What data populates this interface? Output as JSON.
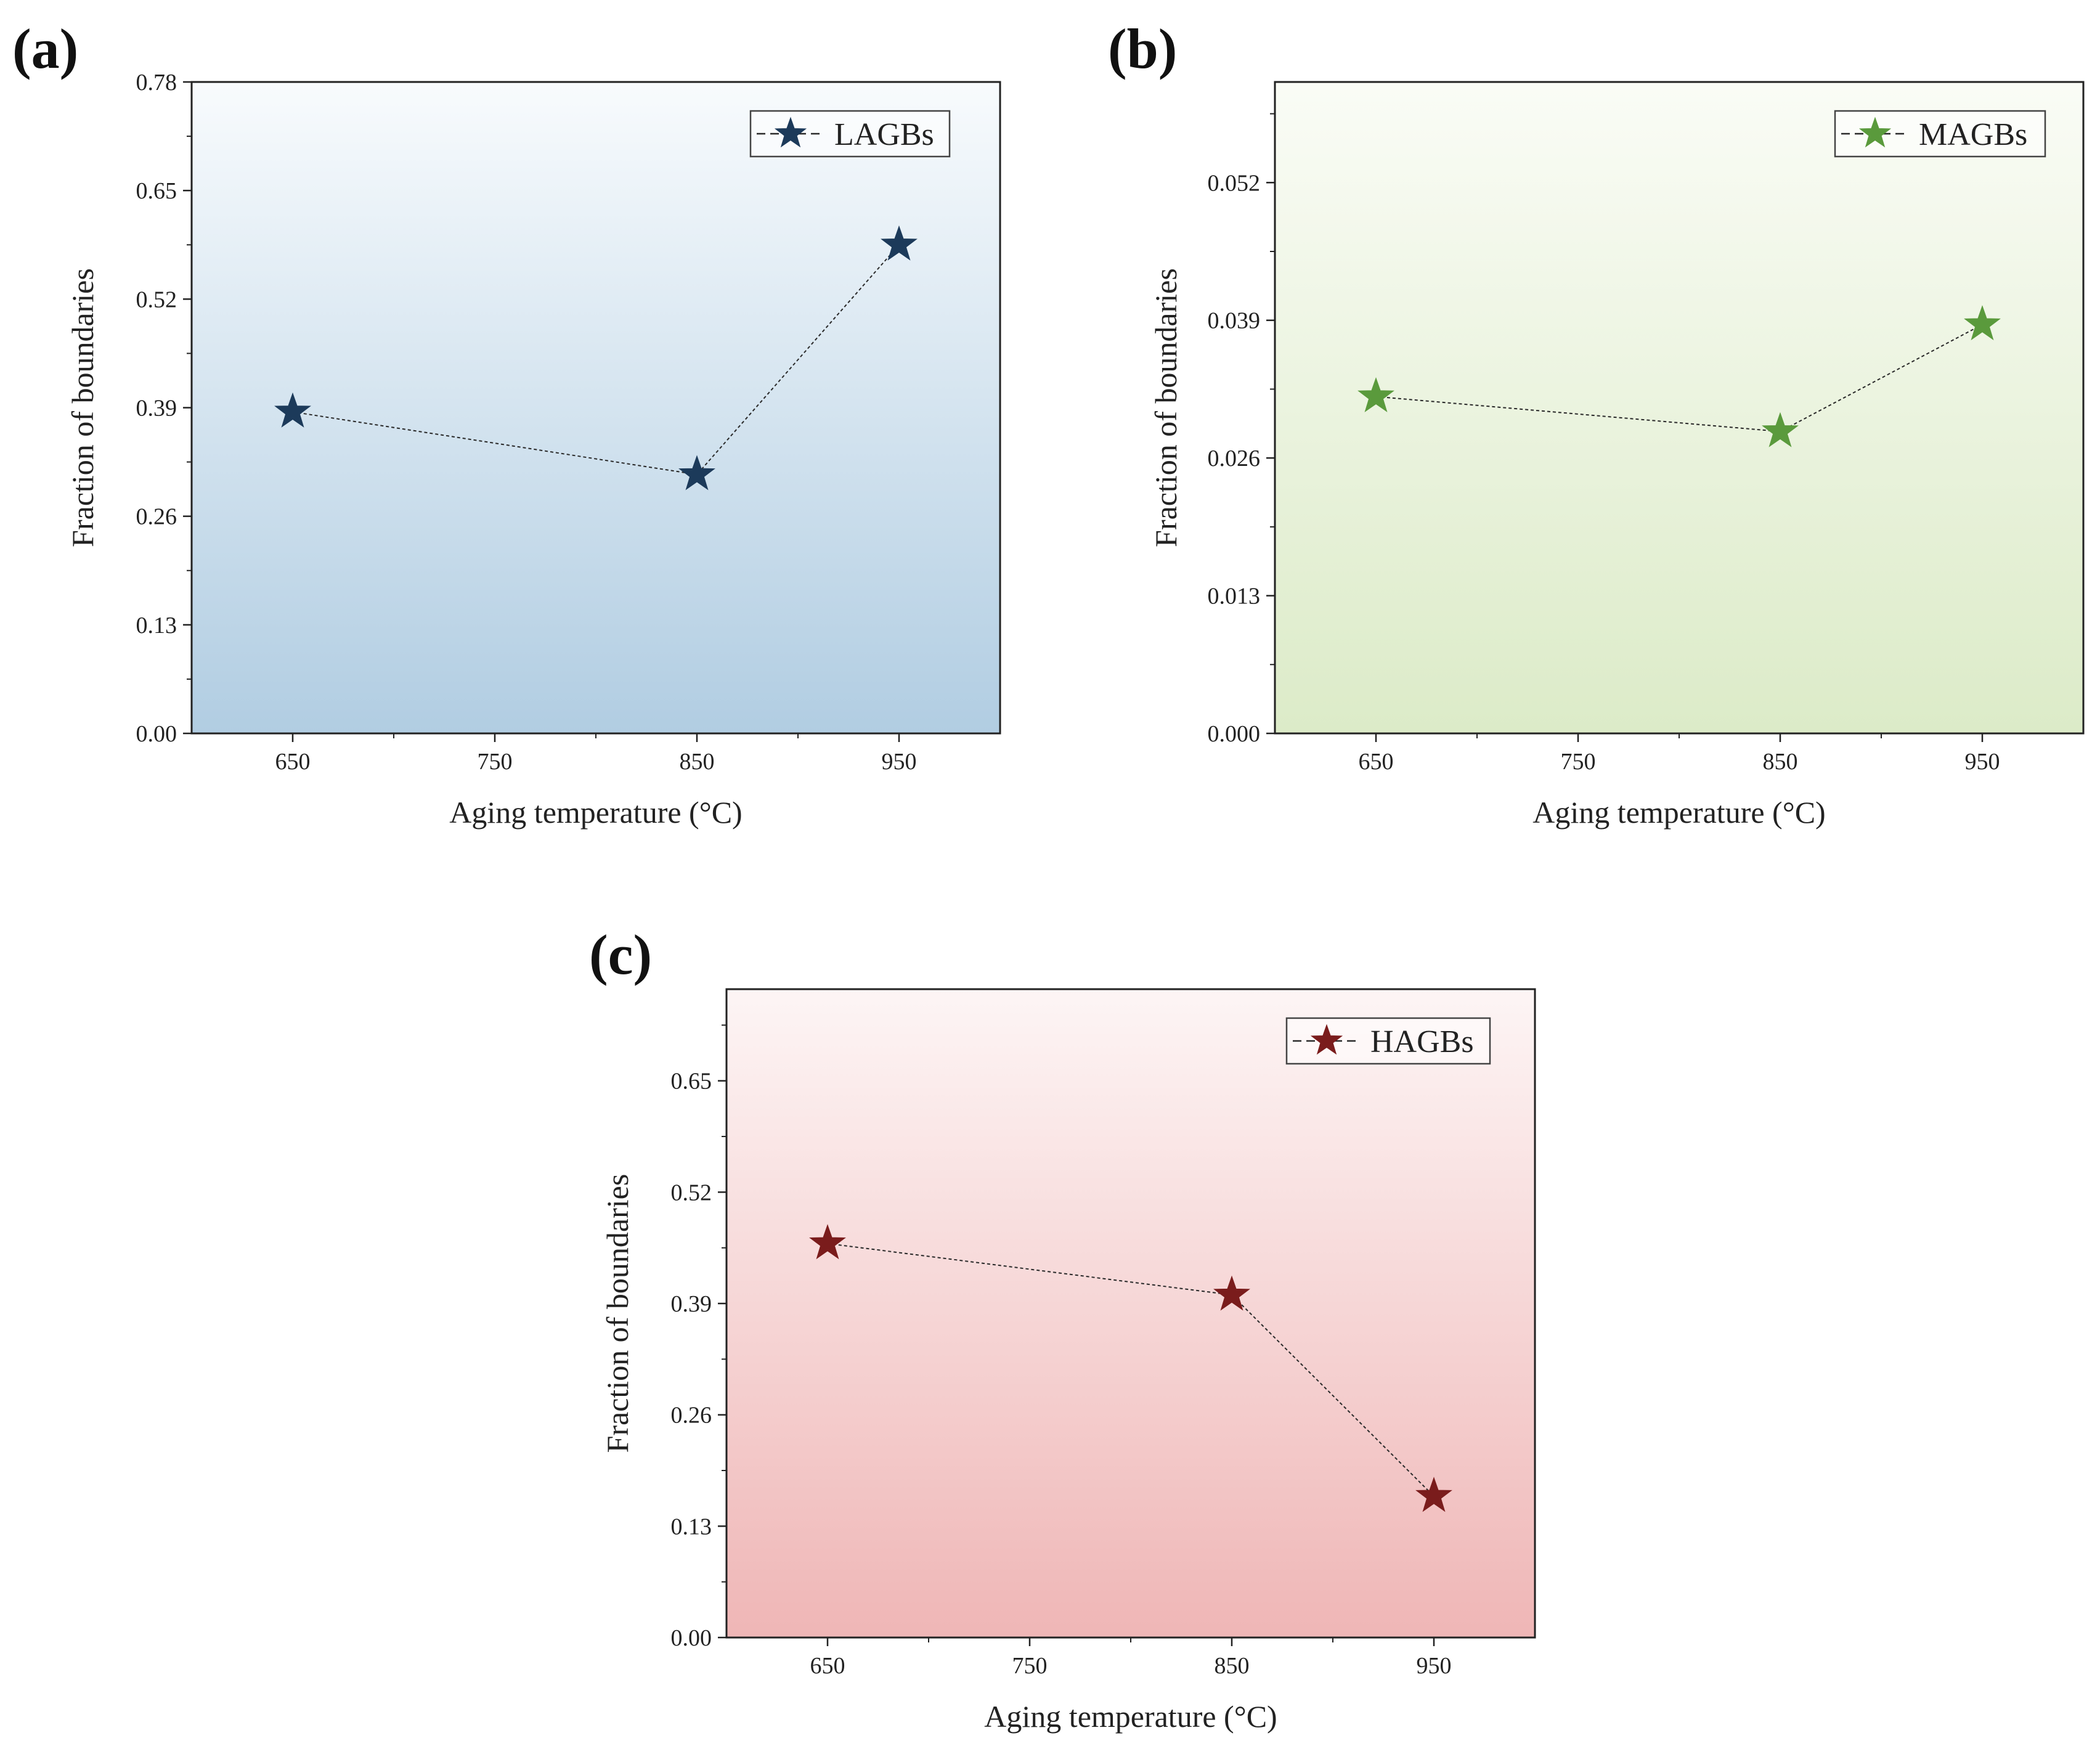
{
  "chart_data": [
    {
      "type": "line",
      "panel_label": "(a)",
      "series": [
        {
          "name": "LAGBs",
          "x": [
            650,
            850,
            950
          ],
          "values": [
            0.385,
            0.31,
            0.585
          ],
          "color": "#1c3a5a"
        }
      ],
      "xlabel": "Aging temperature (°C)",
      "ylabel": "Fraction of boundaries",
      "xlim": [
        600,
        1000
      ],
      "ylim": [
        0,
        0.78
      ],
      "xticks": [
        650,
        750,
        850,
        950
      ],
      "xtick_labels": [
        "650",
        "750",
        "850",
        "950"
      ],
      "yticks": [
        0,
        0.13,
        0.26,
        0.39,
        0.52,
        0.65,
        0.78
      ],
      "ytick_labels": [
        "0.00",
        "0.13",
        "0.26",
        "0.39",
        "0.52",
        "0.65",
        "0.78"
      ],
      "legend_position": "top-right",
      "background": {
        "top": "#f8fbfd",
        "bottom": "#b1cde2"
      }
    },
    {
      "type": "line",
      "panel_label": "(b)",
      "series": [
        {
          "name": "MAGBs",
          "x": [
            650,
            850,
            950
          ],
          "values": [
            0.0318,
            0.0285,
            0.0386
          ],
          "color": "#5a9a3c"
        }
      ],
      "xlabel": "Aging temperature (°C)",
      "ylabel": "Fraction of boundaries",
      "xlim": [
        600,
        1000
      ],
      "ylim": [
        0,
        0.0615
      ],
      "xticks": [
        650,
        750,
        850,
        950
      ],
      "xtick_labels": [
        "650",
        "750",
        "850",
        "950"
      ],
      "yticks": [
        0,
        0.013,
        0.026,
        0.039,
        0.052
      ],
      "ytick_labels": [
        "0.000",
        "0.013",
        "0.026",
        "0.039",
        "0.052"
      ],
      "legend_position": "top-right",
      "background": {
        "top": "#fafcf6",
        "bottom": "#dcebc8"
      }
    },
    {
      "type": "line",
      "panel_label": "(c)",
      "series": [
        {
          "name": "HAGBs",
          "x": [
            650,
            850,
            950
          ],
          "values": [
            0.46,
            0.4,
            0.165
          ],
          "color": "#7a1c1c"
        }
      ],
      "xlabel": "Aging temperature (°C)",
      "ylabel": "Fraction of boundaries",
      "xlim": [
        600,
        1000
      ],
      "ylim": [
        0,
        0.757
      ],
      "xticks": [
        650,
        750,
        850,
        950
      ],
      "xtick_labels": [
        "650",
        "750",
        "850",
        "950"
      ],
      "yticks": [
        0,
        0.13,
        0.26,
        0.39,
        0.52,
        0.65
      ],
      "ytick_labels": [
        "0.00",
        "0.13",
        "0.26",
        "0.39",
        "0.52",
        "0.65"
      ],
      "legend_position": "top-right",
      "background": {
        "top": "#fdf5f5",
        "bottom": "#efb6b6"
      }
    }
  ]
}
